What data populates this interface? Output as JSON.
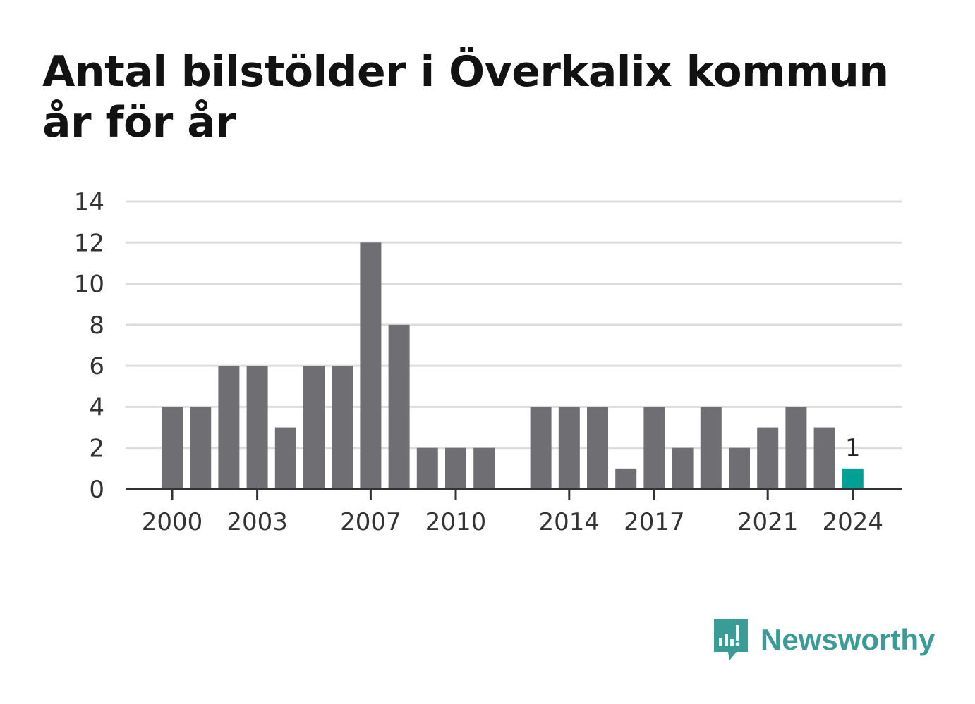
{
  "title": "Antal bilstölder i Överkalix kommun år för år",
  "brand": {
    "name": "Newsworthy",
    "icon": "newsworthy-logo-icon",
    "color": "#3a9b97"
  },
  "colors": {
    "bar": "#6f6e73",
    "highlight": "#00a195",
    "grid": "#dddddd",
    "axis": "#333333"
  },
  "chart_data": {
    "type": "bar",
    "title": "Antal bilstölder i Överkalix kommun år för år",
    "x": [
      2000,
      2001,
      2002,
      2003,
      2004,
      2005,
      2006,
      2007,
      2008,
      2009,
      2010,
      2011,
      2012,
      2013,
      2014,
      2015,
      2016,
      2017,
      2018,
      2019,
      2020,
      2021,
      2022,
      2023,
      2024
    ],
    "values": [
      4,
      4,
      6,
      6,
      3,
      6,
      6,
      12,
      8,
      2,
      2,
      2,
      0,
      4,
      4,
      4,
      1,
      4,
      2,
      4,
      2,
      3,
      4,
      3,
      1
    ],
    "xticks": [
      2000,
      2003,
      2007,
      2010,
      2014,
      2017,
      2021,
      2024
    ],
    "yticks": [
      0,
      2,
      4,
      6,
      8,
      10,
      12,
      14
    ],
    "ylim": [
      0,
      14
    ],
    "highlight_x": 2024,
    "data_labels": [
      {
        "x": 2024,
        "text": "1"
      }
    ],
    "xlabel": "",
    "ylabel": "",
    "grid": true,
    "legend": "none"
  }
}
